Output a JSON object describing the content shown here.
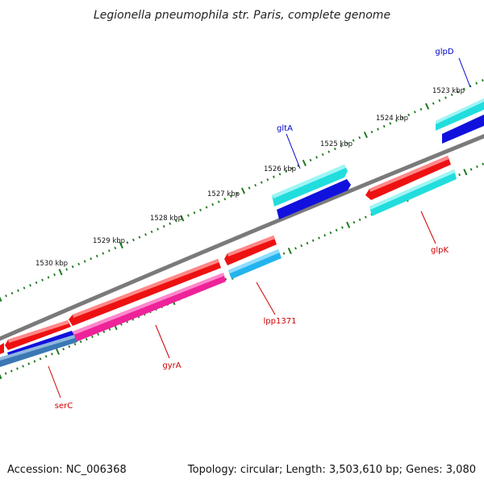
{
  "title": "Legionella pneumophila str. Paris, complete genome",
  "footer": {
    "accession": "Accession: NC_006368",
    "summary": "Topology: circular; Length: 3,503,610 bp; Genes: 3,080"
  },
  "colors": {
    "backbone": "#7a7a7a",
    "tick": "#1f7a1f",
    "gene_red": "#ee1111",
    "gene_cyan": "#22dddd",
    "gene_blue": "#1111dd",
    "gene_sky": "#22b4ee",
    "gene_magenta": "#ee2299",
    "gene_steel": "#3a78b4",
    "label_forward": "#0000cc",
    "label_reverse": "#cc0000"
  },
  "kbp_labels": [
    "1523 kbp",
    "1524 kbp",
    "1525 kbp",
    "1526 kbp",
    "1527 kbp",
    "1528 kbp",
    "1529 kbp",
    "1530 kbp"
  ],
  "genes": [
    {
      "name": "glpD",
      "strand": "forward"
    },
    {
      "name": "gltA",
      "strand": "forward"
    },
    {
      "name": "glpK",
      "strand": "reverse"
    },
    {
      "name": "lpp1371",
      "strand": "reverse"
    },
    {
      "name": "gyrA",
      "strand": "reverse"
    },
    {
      "name": "serC",
      "strand": "reverse"
    }
  ]
}
